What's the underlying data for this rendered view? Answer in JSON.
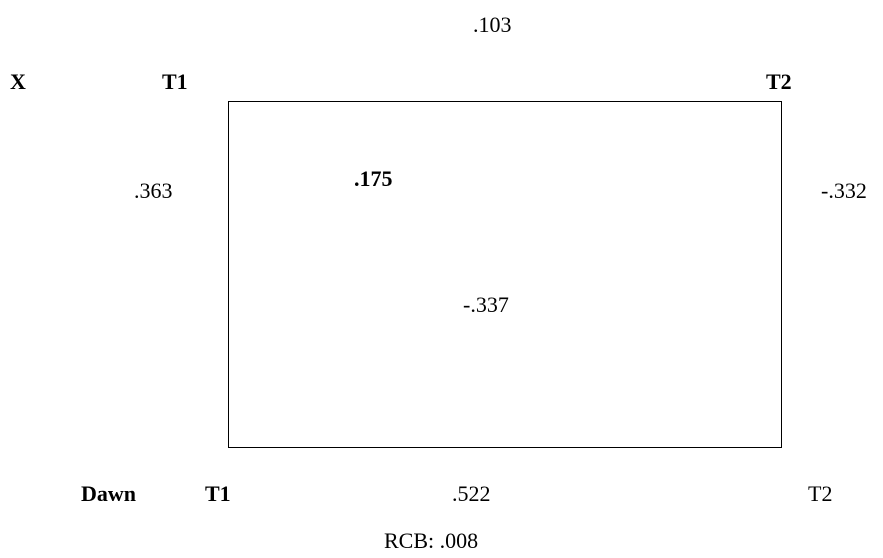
{
  "top": {
    "variable": "X",
    "t1": "T1",
    "t2": "T2",
    "cross_lag": ".103"
  },
  "bottom": {
    "variable": "Dawn",
    "t1": "T1",
    "t2": "T2",
    "cross_lag": ".522"
  },
  "left_stability": ".363",
  "right_stability": "-.332",
  "inner_diagonal": ".175",
  "inner_center": "-.337",
  "rcb": "RCB: .008"
}
